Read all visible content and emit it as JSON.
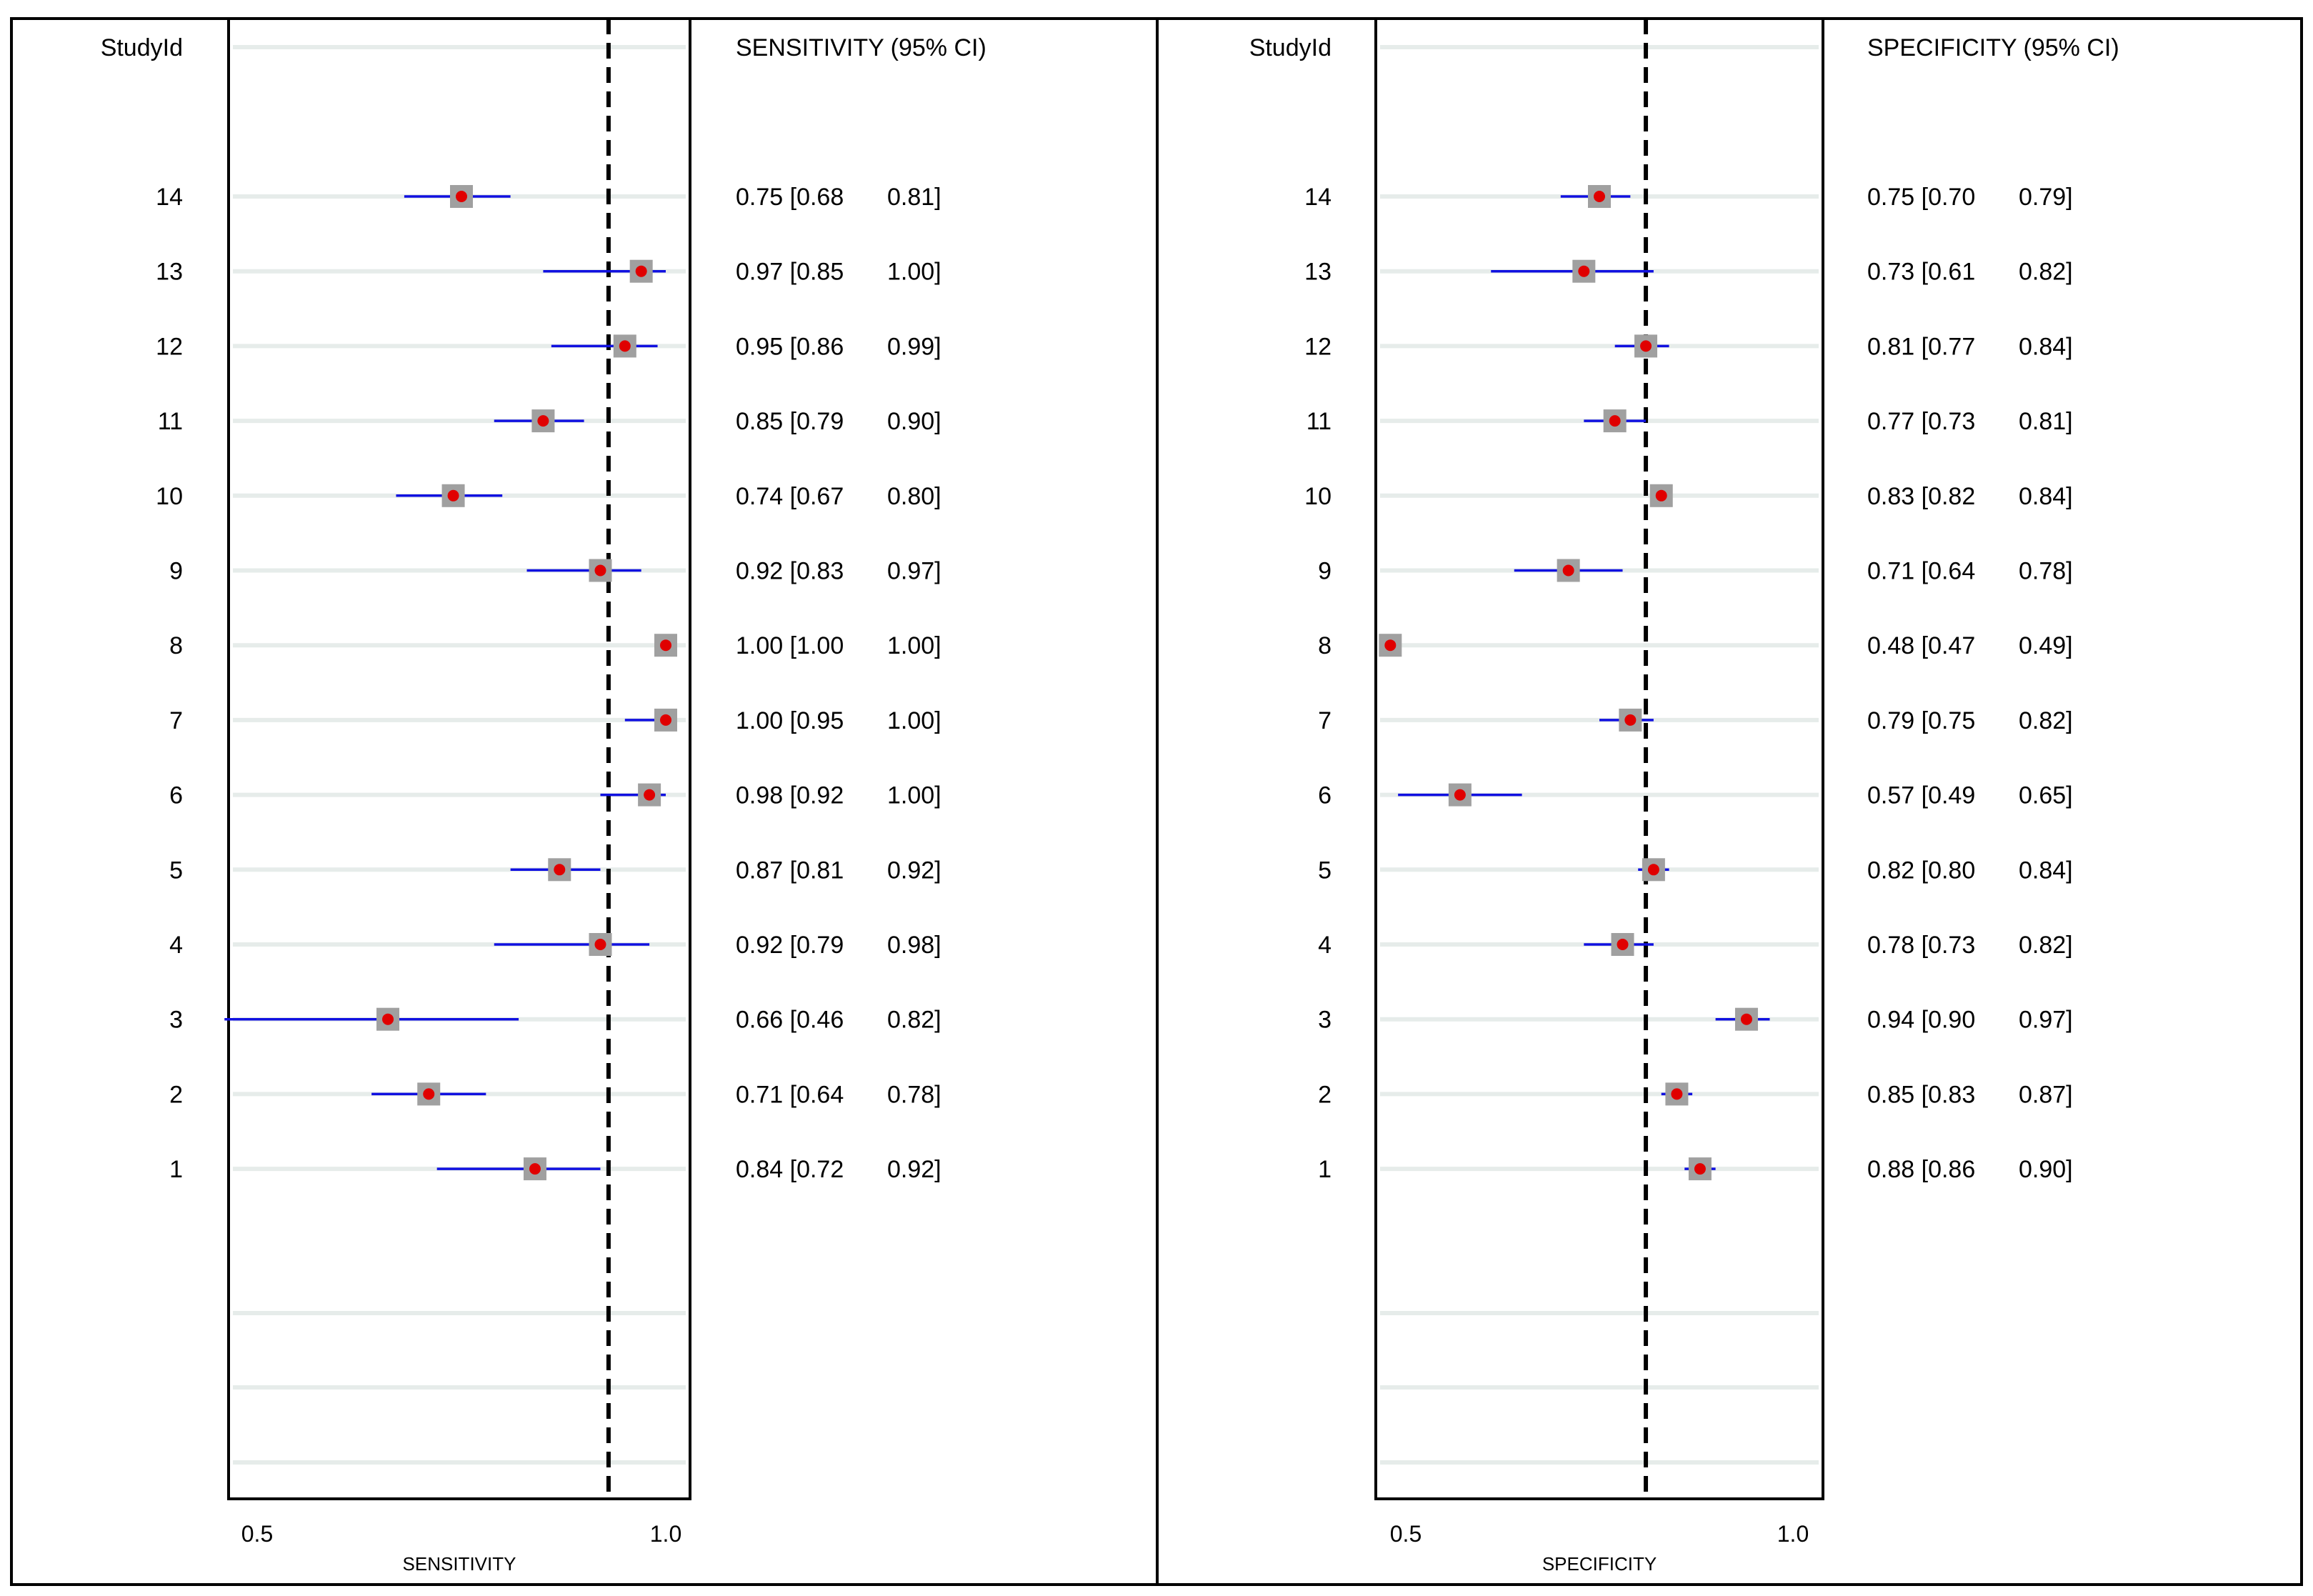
{
  "chart_data": [
    {
      "type": "forest",
      "panel": "left",
      "header_left": "StudyId",
      "header_right": "SENSITIVITY (95% CI)",
      "xlabel": "SENSITIVITY",
      "xlim": [
        0.47,
        1.03
      ],
      "ticks": [
        0.5,
        1.0
      ],
      "tick_labels": [
        "0.5",
        "1.0"
      ],
      "pooled_line": 0.93,
      "studies": [
        {
          "id": "14",
          "est": 0.75,
          "lo": 0.68,
          "hi": 0.81,
          "label": "0.75 [0.68",
          "label_hi": "0.81]"
        },
        {
          "id": "13",
          "est": 0.97,
          "lo": 0.85,
          "hi": 1.0,
          "label": "0.97 [0.85",
          "label_hi": "1.00]"
        },
        {
          "id": "12",
          "est": 0.95,
          "lo": 0.86,
          "hi": 0.99,
          "label": "0.95 [0.86",
          "label_hi": "0.99]"
        },
        {
          "id": "11",
          "est": 0.85,
          "lo": 0.79,
          "hi": 0.9,
          "label": "0.85 [0.79",
          "label_hi": "0.90]"
        },
        {
          "id": "10",
          "est": 0.74,
          "lo": 0.67,
          "hi": 0.8,
          "label": "0.74 [0.67",
          "label_hi": "0.80]"
        },
        {
          "id": "9",
          "est": 0.92,
          "lo": 0.83,
          "hi": 0.97,
          "label": "0.92 [0.83",
          "label_hi": "0.97]"
        },
        {
          "id": "8",
          "est": 1.0,
          "lo": 1.0,
          "hi": 1.0,
          "label": "1.00 [1.00",
          "label_hi": "1.00]"
        },
        {
          "id": "7",
          "est": 1.0,
          "lo": 0.95,
          "hi": 1.0,
          "label": "1.00 [0.95",
          "label_hi": "1.00]"
        },
        {
          "id": "6",
          "est": 0.98,
          "lo": 0.92,
          "hi": 1.0,
          "label": "0.98 [0.92",
          "label_hi": "1.00]"
        },
        {
          "id": "5",
          "est": 0.87,
          "lo": 0.81,
          "hi": 0.92,
          "label": "0.87 [0.81",
          "label_hi": "0.92]"
        },
        {
          "id": "4",
          "est": 0.92,
          "lo": 0.79,
          "hi": 0.98,
          "label": "0.92 [0.79",
          "label_hi": "0.98]"
        },
        {
          "id": "3",
          "est": 0.66,
          "lo": 0.46,
          "hi": 0.82,
          "label": "0.66 [0.46",
          "label_hi": "0.82]"
        },
        {
          "id": "2",
          "est": 0.71,
          "lo": 0.64,
          "hi": 0.78,
          "label": "0.71 [0.64",
          "label_hi": "0.78]"
        },
        {
          "id": "1",
          "est": 0.84,
          "lo": 0.72,
          "hi": 0.92,
          "label": "0.84 [0.72",
          "label_hi": "0.92]"
        }
      ]
    },
    {
      "type": "forest",
      "panel": "right",
      "header_left": "StudyId",
      "header_right": "SPECIFICITY (95% CI)",
      "xlabel": "SPECIFICITY",
      "xlim": [
        0.47,
        1.03
      ],
      "ticks": [
        0.5,
        1.0
      ],
      "tick_labels": [
        "0.5",
        "1.0"
      ],
      "pooled_line": 0.81,
      "studies": [
        {
          "id": "14",
          "est": 0.75,
          "lo": 0.7,
          "hi": 0.79,
          "label": "0.75 [0.70",
          "label_hi": "0.79]"
        },
        {
          "id": "13",
          "est": 0.73,
          "lo": 0.61,
          "hi": 0.82,
          "label": "0.73 [0.61",
          "label_hi": "0.82]"
        },
        {
          "id": "12",
          "est": 0.81,
          "lo": 0.77,
          "hi": 0.84,
          "label": "0.81 [0.77",
          "label_hi": "0.84]"
        },
        {
          "id": "11",
          "est": 0.77,
          "lo": 0.73,
          "hi": 0.81,
          "label": "0.77 [0.73",
          "label_hi": "0.81]"
        },
        {
          "id": "10",
          "est": 0.83,
          "lo": 0.82,
          "hi": 0.84,
          "label": "0.83 [0.82",
          "label_hi": "0.84]"
        },
        {
          "id": "9",
          "est": 0.71,
          "lo": 0.64,
          "hi": 0.78,
          "label": "0.71 [0.64",
          "label_hi": "0.78]"
        },
        {
          "id": "8",
          "est": 0.48,
          "lo": 0.47,
          "hi": 0.49,
          "label": "0.48 [0.47",
          "label_hi": "0.49]"
        },
        {
          "id": "7",
          "est": 0.79,
          "lo": 0.75,
          "hi": 0.82,
          "label": "0.79 [0.75",
          "label_hi": "0.82]"
        },
        {
          "id": "6",
          "est": 0.57,
          "lo": 0.49,
          "hi": 0.65,
          "label": "0.57 [0.49",
          "label_hi": "0.65]"
        },
        {
          "id": "5",
          "est": 0.82,
          "lo": 0.8,
          "hi": 0.84,
          "label": "0.82 [0.80",
          "label_hi": "0.84]"
        },
        {
          "id": "4",
          "est": 0.78,
          "lo": 0.73,
          "hi": 0.82,
          "label": "0.78 [0.73",
          "label_hi": "0.82]"
        },
        {
          "id": "3",
          "est": 0.94,
          "lo": 0.9,
          "hi": 0.97,
          "label": "0.94 [0.90",
          "label_hi": "0.97]"
        },
        {
          "id": "2",
          "est": 0.85,
          "lo": 0.83,
          "hi": 0.87,
          "label": "0.85 [0.83",
          "label_hi": "0.87]"
        },
        {
          "id": "1",
          "est": 0.88,
          "lo": 0.86,
          "hi": 0.9,
          "label": "0.88 [0.86",
          "label_hi": "0.90]"
        }
      ]
    }
  ],
  "colors": {
    "ci_line": "#1010e0",
    "point": "#e00000",
    "box": "#a0a0a0",
    "row_guide": "#e6ecea",
    "frame": "#000000"
  }
}
